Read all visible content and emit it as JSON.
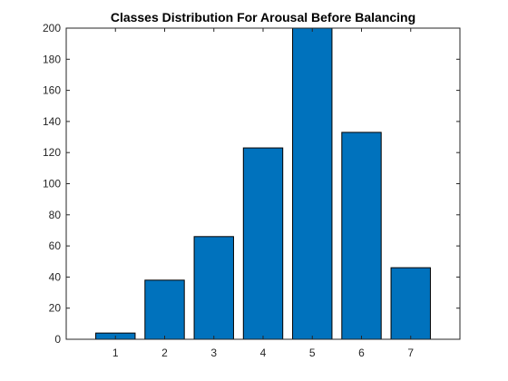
{
  "chart_data": {
    "type": "bar",
    "title": "Classes Distribution For Arousal Before Balancing",
    "xlabel": "",
    "ylabel": "",
    "categories": [
      "1",
      "2",
      "3",
      "4",
      "5",
      "6",
      "7"
    ],
    "values": [
      4,
      38,
      66,
      123,
      200,
      133,
      46
    ],
    "xlim": [
      0,
      8
    ],
    "ylim": [
      0,
      200
    ],
    "yticks": [
      0,
      20,
      40,
      60,
      80,
      100,
      120,
      140,
      160,
      180,
      200
    ],
    "grid": false,
    "legend": "none",
    "bar_color": "#0072bd",
    "edge_color": "#000000"
  }
}
